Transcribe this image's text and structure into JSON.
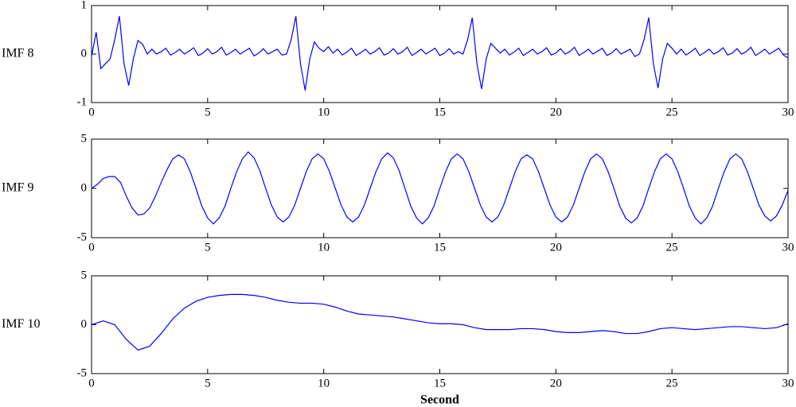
{
  "chart_data": [
    {
      "type": "line",
      "ylabel": "IMF 8",
      "color": "#0000ff",
      "xlim": [
        0,
        30
      ],
      "ylim": [
        -1,
        1
      ],
      "xticks": [
        0,
        5,
        10,
        15,
        20,
        25,
        30
      ],
      "yticks": [
        -1,
        0,
        1
      ],
      "x": [
        0,
        0.2,
        0.4,
        0.6,
        0.8,
        1,
        1.2,
        1.4,
        1.6,
        1.8,
        2,
        2.2,
        2.4,
        2.6,
        2.8,
        3,
        3.2,
        3.4,
        3.6,
        3.8,
        4,
        4.2,
        4.4,
        4.6,
        4.8,
        5,
        5.2,
        5.4,
        5.6,
        5.8,
        6,
        6.2,
        6.4,
        6.6,
        6.8,
        7,
        7.2,
        7.4,
        7.6,
        7.8,
        8,
        8.2,
        8.4,
        8.6,
        8.8,
        9,
        9.2,
        9.4,
        9.6,
        9.8,
        10,
        10.2,
        10.4,
        10.6,
        10.8,
        11,
        11.2,
        11.4,
        11.6,
        11.8,
        12,
        12.2,
        12.4,
        12.6,
        12.8,
        13,
        13.2,
        13.4,
        13.6,
        13.8,
        14,
        14.2,
        14.4,
        14.6,
        14.8,
        15,
        15.2,
        15.4,
        15.6,
        15.8,
        16,
        16.2,
        16.4,
        16.6,
        16.8,
        17,
        17.2,
        17.4,
        17.6,
        17.8,
        18,
        18.2,
        18.4,
        18.6,
        18.8,
        19,
        19.2,
        19.4,
        19.6,
        19.8,
        20,
        20.2,
        20.4,
        20.6,
        20.8,
        21,
        21.2,
        21.4,
        21.6,
        21.8,
        22,
        22.2,
        22.4,
        22.6,
        22.8,
        23,
        23.2,
        23.4,
        23.6,
        23.8,
        24,
        24.2,
        24.4,
        24.6,
        24.8,
        25,
        25.2,
        25.4,
        25.6,
        25.8,
        26,
        26.2,
        26.4,
        26.6,
        26.8,
        27,
        27.2,
        27.4,
        27.6,
        27.8,
        28,
        28.2,
        28.4,
        28.6,
        28.8,
        29,
        29.2,
        29.4,
        29.6,
        29.8,
        30
      ],
      "values": [
        -0.05,
        0.45,
        -0.3,
        -0.2,
        -0.1,
        0.3,
        0.78,
        -0.2,
        -0.65,
        -0.1,
        0.28,
        0.2,
        0.0,
        0.1,
        0.0,
        0.05,
        0.12,
        -0.02,
        0.03,
        0.1,
        0.0,
        0.06,
        0.13,
        -0.03,
        0.02,
        0.11,
        0.0,
        0.05,
        0.14,
        -0.02,
        0.03,
        0.1,
        0.0,
        0.06,
        0.12,
        -0.04,
        0.02,
        0.11,
        0.0,
        0.05,
        0.1,
        -0.02,
        0.0,
        0.3,
        0.78,
        -0.2,
        -0.75,
        -0.1,
        0.25,
        0.12,
        0.05,
        0.15,
        0.02,
        0.1,
        -0.02,
        0.04,
        0.12,
        -0.03,
        0.03,
        0.1,
        0.0,
        0.05,
        0.13,
        -0.02,
        0.02,
        0.11,
        0.0,
        0.05,
        0.14,
        -0.03,
        0.03,
        0.1,
        0.0,
        0.06,
        0.12,
        -0.03,
        0.02,
        0.11,
        0.0,
        0.05,
        0.0,
        0.3,
        0.75,
        -0.2,
        -0.72,
        -0.1,
        0.22,
        0.12,
        0.02,
        0.1,
        -0.02,
        0.04,
        0.12,
        -0.03,
        0.03,
        0.1,
        0.0,
        0.05,
        0.13,
        -0.02,
        0.02,
        0.11,
        0.0,
        0.05,
        0.14,
        -0.03,
        0.03,
        0.1,
        0.0,
        0.06,
        0.12,
        -0.03,
        0.02,
        0.11,
        0.0,
        0.05,
        0.1,
        -0.05,
        0.0,
        0.3,
        0.75,
        -0.2,
        -0.7,
        -0.1,
        0.22,
        0.12,
        0.0,
        0.1,
        -0.02,
        0.04,
        0.12,
        -0.03,
        0.03,
        0.1,
        0.0,
        0.05,
        0.13,
        -0.02,
        0.02,
        0.11,
        0.0,
        0.05,
        0.14,
        -0.03,
        0.03,
        0.1,
        0.0,
        0.06,
        0.12,
        -0.02,
        -0.08
      ]
    },
    {
      "type": "line",
      "ylabel": "IMF 9",
      "color": "#0000ff",
      "xlim": [
        0,
        30
      ],
      "ylim": [
        -5,
        5
      ],
      "xticks": [
        0,
        5,
        10,
        15,
        20,
        25,
        30
      ],
      "yticks": [
        -5,
        0,
        5
      ],
      "x": [
        0,
        0.25,
        0.5,
        0.75,
        1,
        1.25,
        1.5,
        1.75,
        2,
        2.25,
        2.5,
        2.75,
        3,
        3.25,
        3.5,
        3.75,
        4,
        4.25,
        4.5,
        4.75,
        5,
        5.25,
        5.5,
        5.75,
        6,
        6.25,
        6.5,
        6.75,
        7,
        7.25,
        7.5,
        7.75,
        8,
        8.25,
        8.5,
        8.75,
        9,
        9.25,
        9.5,
        9.75,
        10,
        10.25,
        10.5,
        10.75,
        11,
        11.25,
        11.5,
        11.75,
        12,
        12.25,
        12.5,
        12.75,
        13,
        13.25,
        13.5,
        13.75,
        14,
        14.25,
        14.5,
        14.75,
        15,
        15.25,
        15.5,
        15.75,
        16,
        16.25,
        16.5,
        16.75,
        17,
        17.25,
        17.5,
        17.75,
        18,
        18.25,
        18.5,
        18.75,
        19,
        19.25,
        19.5,
        19.75,
        20,
        20.25,
        20.5,
        20.75,
        21,
        21.25,
        21.5,
        21.75,
        22,
        22.25,
        22.5,
        22.75,
        23,
        23.25,
        23.5,
        23.75,
        24,
        24.25,
        24.5,
        24.75,
        25,
        25.25,
        25.5,
        25.75,
        26,
        26.25,
        26.5,
        26.75,
        27,
        27.25,
        27.5,
        27.75,
        28,
        28.25,
        28.5,
        28.75,
        29,
        29.25,
        29.5,
        29.75,
        30
      ],
      "values": [
        0,
        0.4,
        1.0,
        1.2,
        1.2,
        0.6,
        -0.8,
        -2.0,
        -2.7,
        -2.6,
        -2.0,
        -0.8,
        0.6,
        1.9,
        3.0,
        3.4,
        3.0,
        1.7,
        0,
        -1.8,
        -3.0,
        -3.6,
        -3.0,
        -1.8,
        0,
        1.7,
        3.0,
        3.7,
        3.1,
        1.8,
        0,
        -1.7,
        -2.9,
        -3.4,
        -2.9,
        -1.7,
        0,
        1.7,
        3.0,
        3.5,
        3.0,
        1.7,
        0,
        -1.7,
        -2.9,
        -3.4,
        -2.9,
        -1.7,
        0,
        1.7,
        3.0,
        3.6,
        3.1,
        1.8,
        0,
        -1.8,
        -3.0,
        -3.6,
        -3.0,
        -1.8,
        0,
        1.7,
        3.0,
        3.5,
        3.0,
        1.7,
        0,
        -1.7,
        -2.9,
        -3.4,
        -2.9,
        -1.7,
        0,
        1.7,
        3.0,
        3.4,
        3.0,
        1.7,
        0,
        -1.7,
        -2.9,
        -3.4,
        -2.9,
        -1.7,
        0,
        1.7,
        3.0,
        3.5,
        3.0,
        1.7,
        0,
        -1.8,
        -3.0,
        -3.5,
        -3.0,
        -1.8,
        0,
        1.7,
        3.0,
        3.5,
        3.0,
        1.7,
        0,
        -1.8,
        -3.0,
        -3.6,
        -3.0,
        -1.8,
        0,
        1.7,
        3.0,
        3.5,
        3.0,
        1.7,
        0,
        -1.7,
        -2.8,
        -3.3,
        -2.8,
        -1.7,
        -0.2
      ]
    },
    {
      "type": "line",
      "ylabel": "IMF 10",
      "xlabel": "Second",
      "color": "#0000ff",
      "xlim": [
        0,
        30
      ],
      "ylim": [
        -5,
        5
      ],
      "xticks": [
        0,
        5,
        10,
        15,
        20,
        25,
        30
      ],
      "yticks": [
        -5,
        0,
        5
      ],
      "x": [
        0,
        0.5,
        1,
        1.5,
        2,
        2.5,
        3,
        3.5,
        4,
        4.5,
        5,
        5.5,
        6,
        6.5,
        7,
        7.5,
        8,
        8.5,
        9,
        9.5,
        10,
        10.5,
        11,
        11.5,
        12,
        12.5,
        13,
        13.5,
        14,
        14.5,
        15,
        15.5,
        16,
        16.5,
        17,
        17.5,
        18,
        18.5,
        19,
        19.5,
        20,
        20.5,
        21,
        21.5,
        22,
        22.5,
        23,
        23.5,
        24,
        24.5,
        25,
        25.5,
        26,
        26.5,
        27,
        27.5,
        28,
        28.5,
        29,
        29.5,
        30
      ],
      "values": [
        0,
        0.4,
        0,
        -1.5,
        -2.6,
        -2.2,
        -0.9,
        0.6,
        1.7,
        2.4,
        2.8,
        3.0,
        3.1,
        3.1,
        3.0,
        2.8,
        2.5,
        2.3,
        2.2,
        2.2,
        2.1,
        1.8,
        1.4,
        1.1,
        1.0,
        0.9,
        0.8,
        0.6,
        0.4,
        0.2,
        0.1,
        0.1,
        0,
        -0.3,
        -0.5,
        -0.5,
        -0.5,
        -0.4,
        -0.4,
        -0.5,
        -0.7,
        -0.8,
        -0.8,
        -0.7,
        -0.6,
        -0.7,
        -0.9,
        -0.9,
        -0.7,
        -0.4,
        -0.3,
        -0.4,
        -0.5,
        -0.4,
        -0.3,
        -0.2,
        -0.2,
        -0.3,
        -0.4,
        -0.3,
        0.1
      ]
    }
  ]
}
